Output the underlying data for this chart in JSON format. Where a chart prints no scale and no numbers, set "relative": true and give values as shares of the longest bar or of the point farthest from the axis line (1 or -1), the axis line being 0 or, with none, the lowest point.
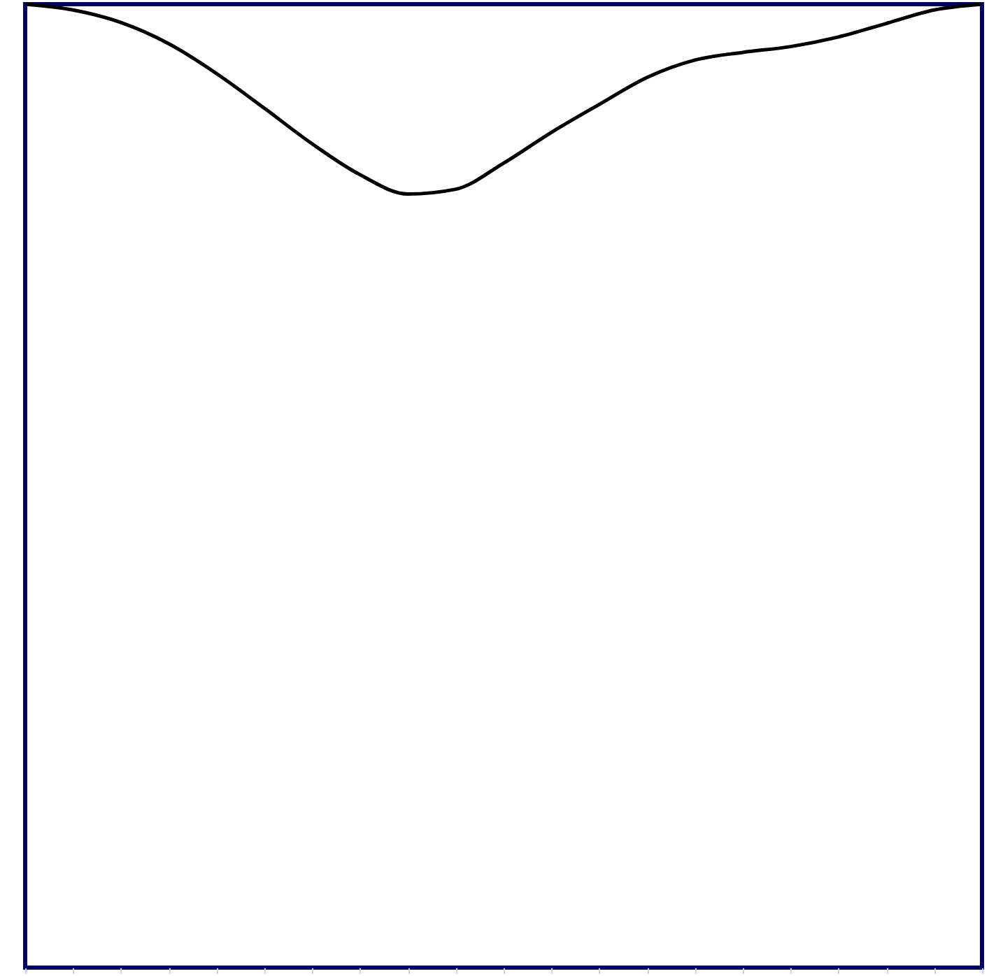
{
  "chart_data": {
    "type": "line",
    "relative": true,
    "categories": [
      null,
      null,
      null,
      null,
      null,
      null,
      null,
      null,
      null,
      null,
      null,
      null,
      null,
      null,
      null,
      null,
      null,
      null,
      null,
      null,
      null
    ],
    "series": [
      {
        "color": "#000000",
        "values": [
          1.0,
          0.994,
          0.981,
          0.959,
          0.928,
          0.892,
          0.855,
          0.823,
          0.803,
          0.808,
          0.835,
          0.867,
          0.896,
          0.924,
          0.942,
          0.95,
          0.956,
          0.966,
          0.98,
          0.994,
          1.0
        ]
      }
    ],
    "line_style": "solid",
    "marker": "none",
    "grid": false,
    "legend": false
  }
}
